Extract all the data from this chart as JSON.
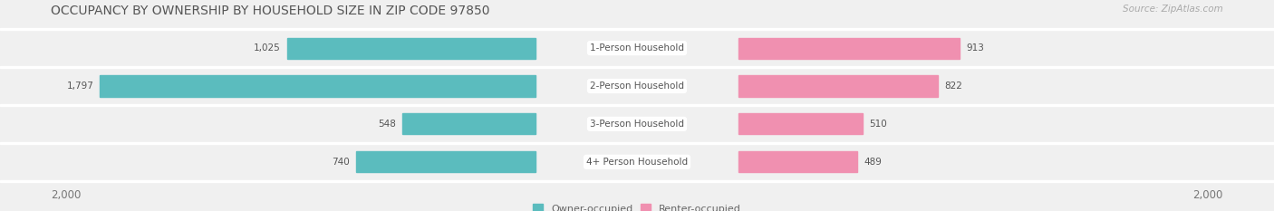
{
  "title": "OCCUPANCY BY OWNERSHIP BY HOUSEHOLD SIZE IN ZIP CODE 97850",
  "source": "Source: ZipAtlas.com",
  "categories": [
    "1-Person Household",
    "2-Person Household",
    "3-Person Household",
    "4+ Person Household"
  ],
  "owner_values": [
    1025,
    1797,
    548,
    740
  ],
  "renter_values": [
    913,
    822,
    510,
    489
  ],
  "max_value": 2000,
  "owner_color": "#5bbcbe",
  "renter_color": "#f090b0",
  "bg_color": "#f0f0f0",
  "title_fontsize": 10,
  "axis_fontsize": 8.5,
  "label_fontsize": 7.5,
  "value_fontsize": 7.5,
  "legend_fontsize": 8,
  "source_fontsize": 7.5
}
